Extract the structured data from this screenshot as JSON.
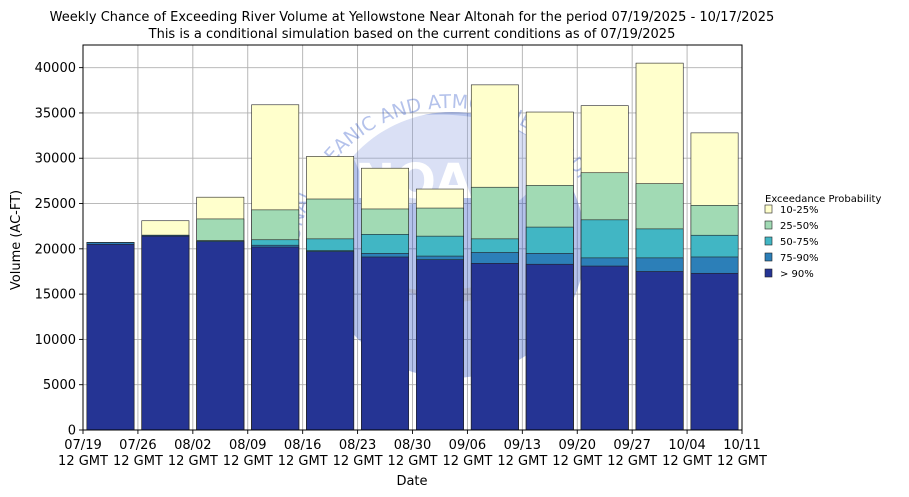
{
  "chart_data": {
    "type": "bar",
    "title": "Weekly Chance of Exceeding River Volume at Yellowstone Near Altonah for the period 07/19/2025 - 10/17/2025",
    "subtitle": "This is a conditional simulation based on the current conditions as of 07/19/2025",
    "xlabel": "Date",
    "ylabel": "Volume (AC-FT)",
    "ylim": [
      0,
      42500
    ],
    "yticks": [
      0,
      5000,
      10000,
      15000,
      20000,
      25000,
      30000,
      35000,
      40000
    ],
    "xtick_labels": [
      [
        "07/19",
        "12 GMT"
      ],
      [
        "07/26",
        "12 GMT"
      ],
      [
        "08/02",
        "12 GMT"
      ],
      [
        "08/09",
        "12 GMT"
      ],
      [
        "08/16",
        "12 GMT"
      ],
      [
        "08/23",
        "12 GMT"
      ],
      [
        "08/30",
        "12 GMT"
      ],
      [
        "09/06",
        "12 GMT"
      ],
      [
        "09/13",
        "12 GMT"
      ],
      [
        "09/20",
        "12 GMT"
      ],
      [
        "09/27",
        "12 GMT"
      ],
      [
        "10/04",
        "12 GMT"
      ],
      [
        "10/11",
        "12 GMT"
      ]
    ],
    "grid": true,
    "stacked_overlay": true,
    "legend_title": "Exceedance Probability",
    "legend_position": "right",
    "watermark_text": "NATIONAL OCEANIC AND ATMOSPHERIC ADMINISTRATION",
    "watermark_center_text": "NOAA",
    "series": [
      {
        "name": "10-25%",
        "color": "#ffffcc",
        "values": [
          20700,
          23100,
          25700,
          35900,
          30200,
          28900,
          26600,
          38100,
          35100,
          35800,
          40500,
          32800
        ]
      },
      {
        "name": "25-50%",
        "color": "#a1dab4",
        "values": [
          20700,
          21500,
          23300,
          24300,
          25500,
          24400,
          24500,
          26800,
          27000,
          28400,
          27200,
          24800
        ]
      },
      {
        "name": "50-75%",
        "color": "#41b6c4",
        "values": [
          20700,
          21500,
          20900,
          21000,
          21100,
          21600,
          21400,
          21100,
          22400,
          23200,
          22200,
          21500
        ]
      },
      {
        "name": "75-90%",
        "color": "#2c7fb8",
        "values": [
          20700,
          21500,
          20900,
          20400,
          19800,
          19500,
          19200,
          19600,
          19500,
          19000,
          19000,
          19100
        ]
      },
      {
        "name": "> 90%",
        "color": "#253494",
        "values": [
          20500,
          21400,
          20800,
          20200,
          19700,
          19100,
          18800,
          18400,
          18300,
          18100,
          17500,
          17300
        ]
      }
    ]
  }
}
